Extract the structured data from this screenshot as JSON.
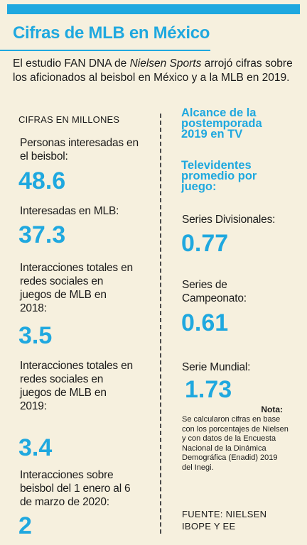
{
  "header": {
    "title": "Cifras de MLB en México"
  },
  "intro": {
    "part1": "El estudio FAN DNA de ",
    "italic": "Nielsen Sports",
    "part2": " arrojó cifras sobre los aficionados al beisbol en México y a la MLB en 2019."
  },
  "left": {
    "units_label": "CIFRAS EN MILLONES",
    "stats": [
      {
        "label": "Personas interesadas en el beisbol:",
        "value": "48.6"
      },
      {
        "label": "Interesadas en MLB:",
        "value": "37.3"
      },
      {
        "label": "Interacciones totales en redes sociales en juegos de MLB en 2018:",
        "value": "3.5"
      },
      {
        "label": "Interacciones totales en redes sociales en juegos de MLB en 2019:",
        "value": "3.4"
      },
      {
        "label": "Interacciones sobre beisbol del 1 enero al 6 de marzo de 2020:",
        "value": "2"
      }
    ]
  },
  "right": {
    "heading": "Alcance de la postemporada 2019 en TV",
    "subheading": "Televidentes promedio por juego:",
    "stats": [
      {
        "label": "Series Divisionales:",
        "value": "0.77"
      },
      {
        "label": "Series de Campeonato:",
        "value": "0.61"
      },
      {
        "label": "Serie Mundial:",
        "value": "1.73"
      }
    ],
    "note_title": "Nota:",
    "note_text": "Se calcularon cifras en base con los porcentajes de Nielsen y con datos de la Encuesta Nacional de la Dinámica Demográfica (Enadid) 2019 del Inegi.",
    "source": "FUENTE: NIELSEN IBOPE Y EE"
  }
}
